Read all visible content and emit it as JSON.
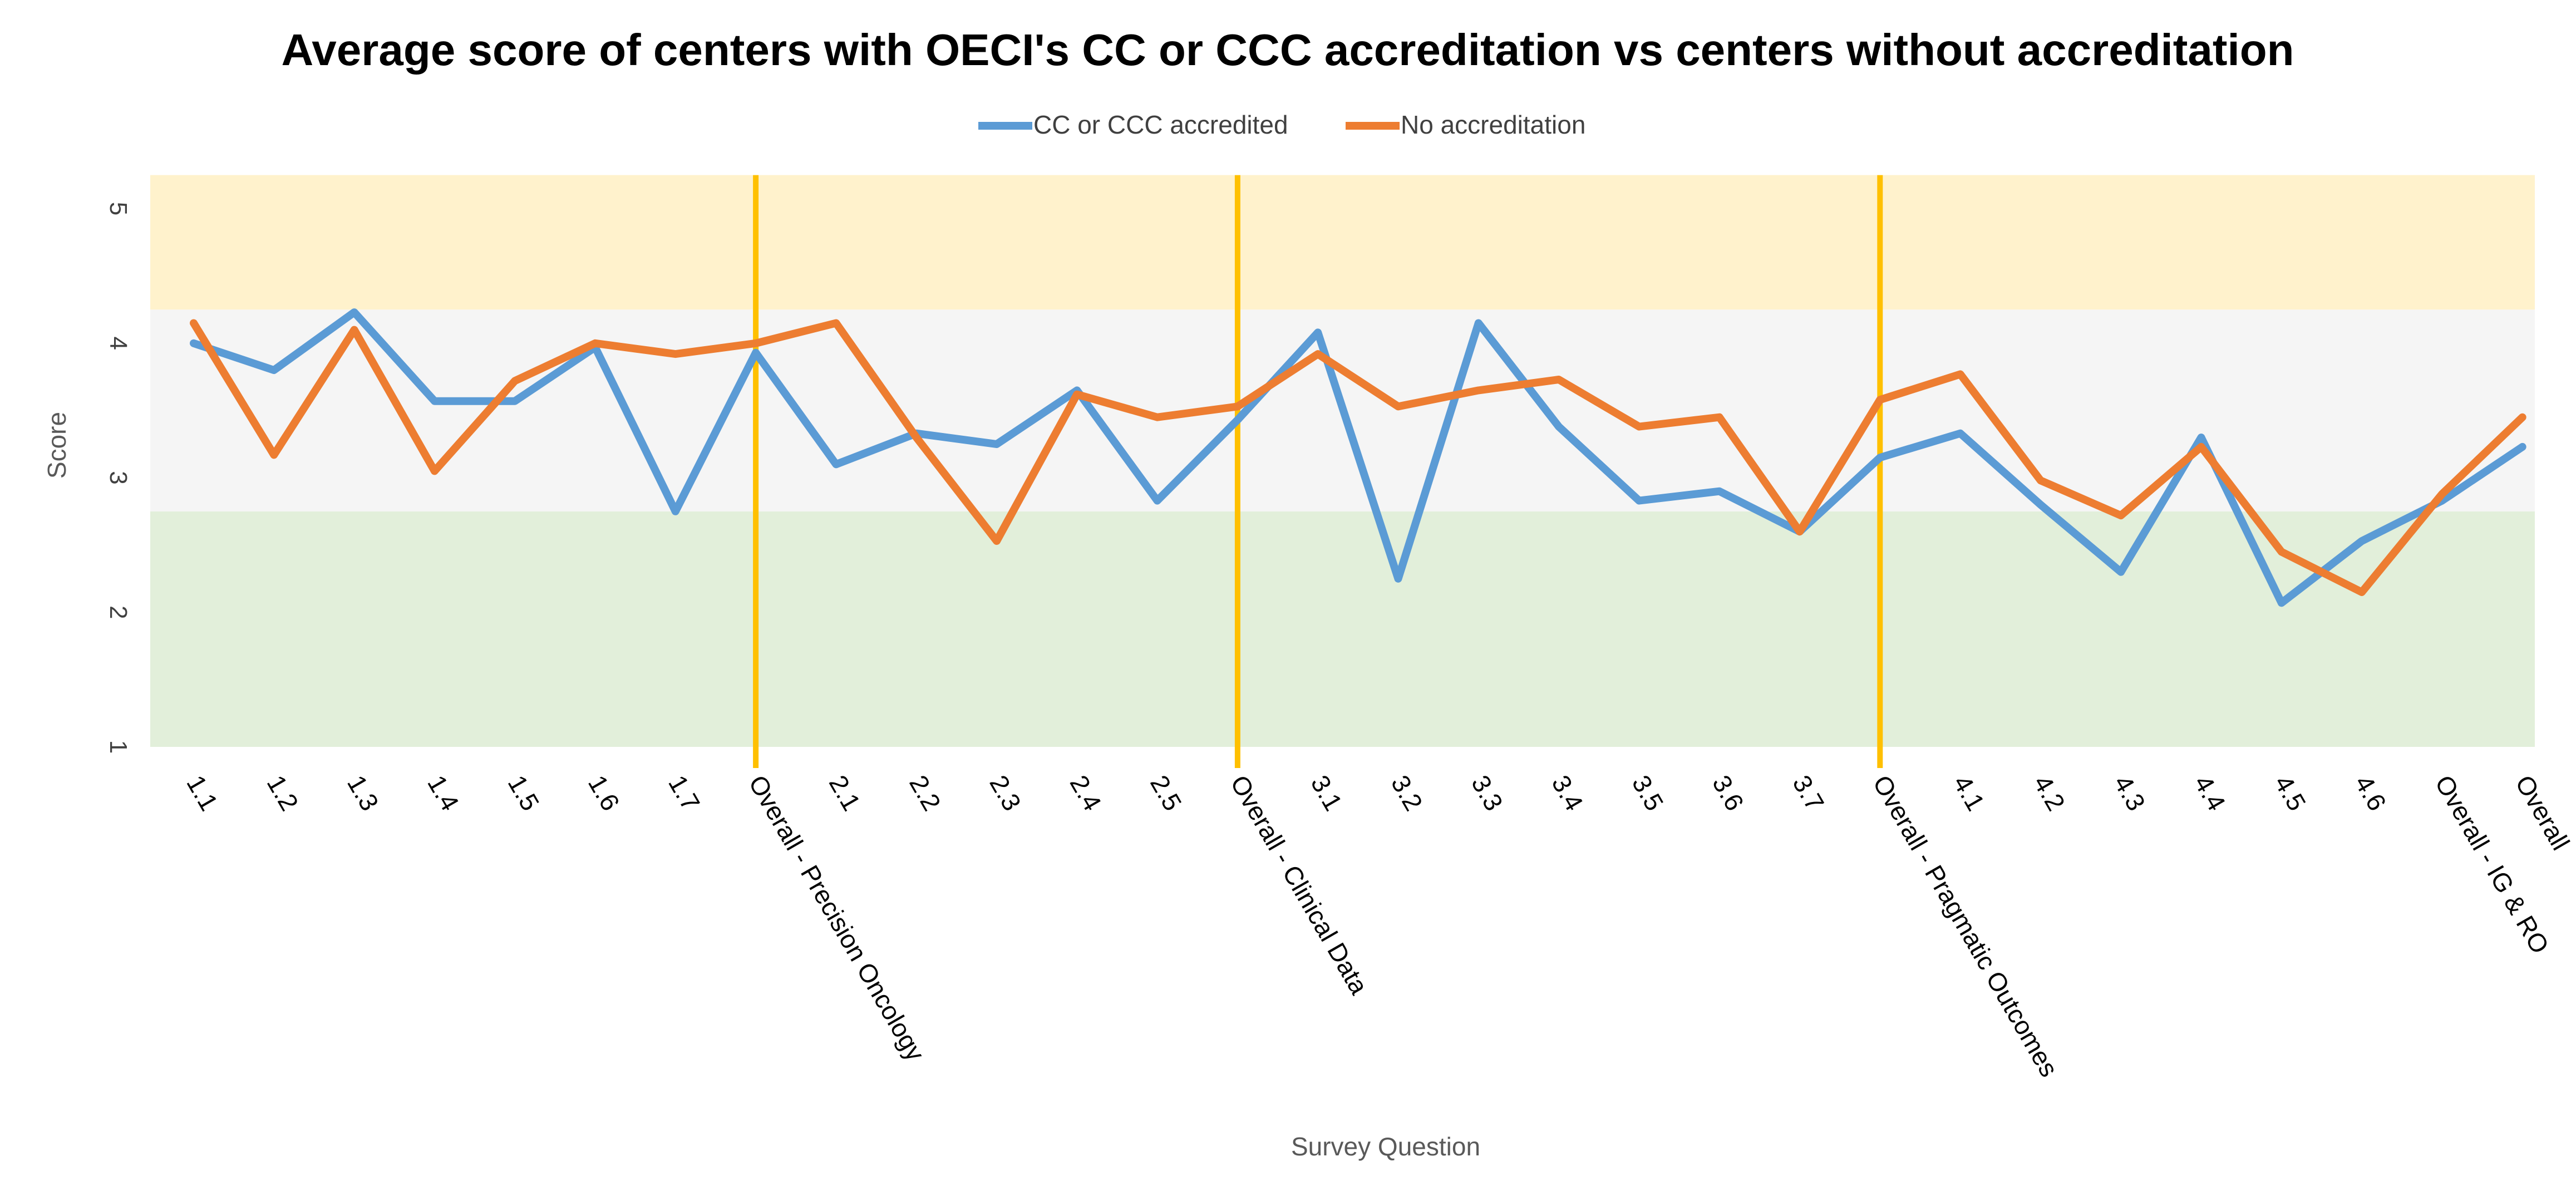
{
  "chart_data": {
    "type": "line",
    "title": "Average score of centers with OECI's CC or CCC accreditation vs centers without accreditation",
    "xlabel": "Survey Question",
    "ylabel": "Score",
    "ylim": [
      1,
      5
    ],
    "yticks": [
      1,
      2,
      3,
      4,
      5
    ],
    "grid": false,
    "legend_position": "top-center",
    "categories": [
      "1.1",
      "1.2",
      "1.3",
      "1.4",
      "1.5",
      "1.6",
      "1.7",
      "Overall - Precision Oncology",
      "2.1",
      "2.2",
      "2.3",
      "2.4",
      "2.5",
      "Overall - Clinical Data",
      "3.1",
      "3.2",
      "3.3",
      "3.4",
      "3.5",
      "3.6",
      "3.7",
      "Overall - Pragmatic Outcomes",
      "4.1",
      "4.2",
      "4.3",
      "4.4",
      "4.5",
      "4.6",
      "Overall - IG & RO",
      "Overall"
    ],
    "series": [
      {
        "name": "CC or CCC accredited",
        "color": "#5B9BD5",
        "values": [
          4.0,
          3.8,
          4.23,
          3.57,
          3.57,
          3.97,
          2.75,
          3.93,
          3.1,
          3.33,
          3.25,
          3.65,
          2.83,
          3.43,
          4.08,
          2.25,
          4.15,
          3.38,
          2.83,
          2.9,
          2.6,
          3.15,
          3.33,
          2.8,
          2.3,
          3.3,
          2.07,
          2.53,
          2.83,
          3.23
        ]
      },
      {
        "name": "No accreditation",
        "color": "#ED7D31",
        "values": [
          4.15,
          3.17,
          4.1,
          3.05,
          3.72,
          4.0,
          3.92,
          4.0,
          4.15,
          3.3,
          2.53,
          3.62,
          3.45,
          3.53,
          3.92,
          3.53,
          3.65,
          3.73,
          3.38,
          3.45,
          2.6,
          3.58,
          3.77,
          2.98,
          2.72,
          3.23,
          2.45,
          2.15,
          2.88,
          3.45
        ]
      }
    ],
    "bands": [
      {
        "from": 1,
        "to": 2.75,
        "color": "#E2EFDA"
      },
      {
        "from": 2.75,
        "to": 4.25,
        "color": "#F5F5F5"
      },
      {
        "from": 4.25,
        "to": 5.25,
        "color": "#FFF2CC"
      }
    ],
    "band_top": 5.25,
    "separator_color": "#FFC000",
    "separators_at": [
      "Overall - Precision Oncology",
      "Overall - Clinical Data",
      "Overall - Pragmatic Outcomes"
    ]
  }
}
